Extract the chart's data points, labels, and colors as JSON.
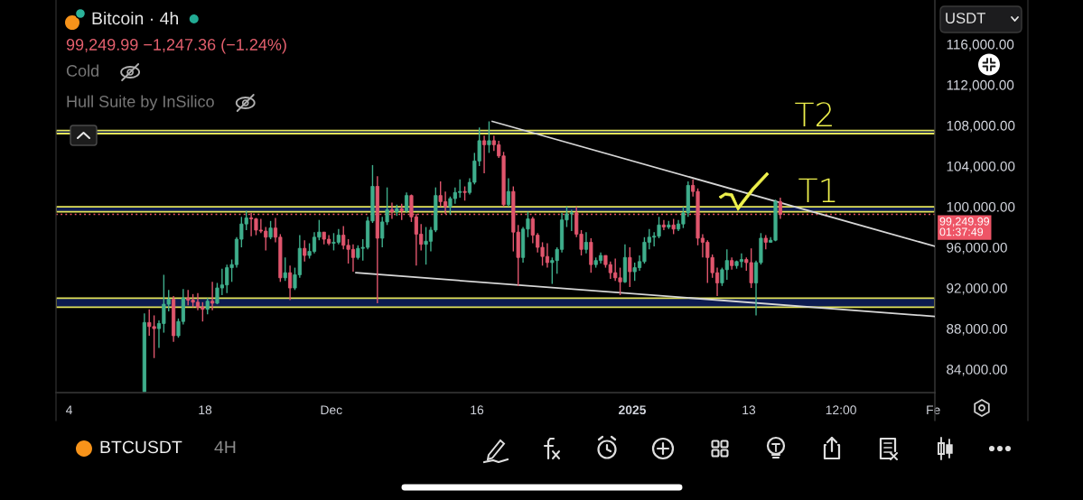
{
  "chart_data": {
    "type": "candlestick",
    "title": "Bitcoin · 4h",
    "subtitle": "99,249.99 −1,247.36 (−1.24%)",
    "ylabel": "USDT",
    "annotations": [
      "Cold",
      "Hull Suite by InSilico",
      "T2",
      "T1",
      "BTCUSDT",
      "4H"
    ],
    "xlim": [
      "2024-11-02T15:30",
      "2025-02-01T04:00"
    ],
    "ylim": [
      81700,
      120350
    ],
    "xticks": [
      {
        "value": "2024-11-04",
        "label": "4"
      },
      {
        "value": "2024-11-18",
        "label": "18"
      },
      {
        "value": "2024-12-01",
        "label": "Dec"
      },
      {
        "value": "2024-12-16",
        "label": "16"
      },
      {
        "value": "2025-01-01",
        "label": "2025"
      },
      {
        "value": "2025-01-13",
        "label": "13"
      },
      {
        "value": "2025-01-22T12:00",
        "label": "12:00"
      },
      {
        "value": "2025-02-01",
        "label": "Fe"
      }
    ],
    "yticks": [
      {
        "value": 84000,
        "label": "84,000.00"
      },
      {
        "value": 88000,
        "label": "88,000.00"
      },
      {
        "value": 92000,
        "label": "92,000.00"
      },
      {
        "value": 96000,
        "label": "96,000.00"
      },
      {
        "value": 100000,
        "label": "100,000.00"
      },
      {
        "value": 104000,
        "label": "104,000.00"
      },
      {
        "value": 108000,
        "label": "108,000.00"
      },
      {
        "value": 112000,
        "label": "112,000.00"
      },
      {
        "value": 116000,
        "label": "116,000.00"
      }
    ],
    "bands": [
      {
        "axis": "y",
        "from": 107200,
        "to": 107500,
        "color": "#0d1b4f"
      },
      {
        "axis": "y",
        "from": 99500,
        "to": 100000,
        "color": "#0d1b4f"
      },
      {
        "axis": "y",
        "from": 90100,
        "to": 91000,
        "color": "#0d1b4f"
      }
    ],
    "ref_lines": [
      {
        "axis": "y",
        "value": 99249.99,
        "label": "99,249.99\n01:37:49",
        "color": "#ee5566",
        "line_style": "dotted"
      }
    ],
    "series": [
      {
        "x": [
          "2024-11-11T18:00",
          "2024-11-12T06:00",
          "2024-11-12T18:00",
          "2024-11-13T06:00",
          "2024-11-13T18:00",
          "2024-11-14T06:00",
          "2024-11-14T18:00",
          "2024-11-15T06:00",
          "2024-11-15T18:00",
          "2024-11-16T06:00",
          "2024-11-16T18:00",
          "2024-11-17T06:00",
          "2024-11-17T18:00",
          "2024-11-18T06:00",
          "2024-11-18T18:00",
          "2024-11-19T06:00",
          "2024-11-19T18:00",
          "2024-11-20T06:00",
          "2024-11-20T18:00",
          "2024-11-21T06:00",
          "2024-11-21T18:00",
          "2024-11-22T06:00",
          "2024-11-22T18:00",
          "2024-11-23T06:00",
          "2024-11-23T18:00",
          "2024-11-24T06:00",
          "2024-11-24T18:00",
          "2024-11-25T06:00",
          "2024-11-25T18:00",
          "2024-11-26T06:00",
          "2024-11-26T18:00",
          "2024-11-27T06:00",
          "2024-11-27T18:00",
          "2024-11-28T06:00",
          "2024-11-28T18:00",
          "2024-11-29T06:00",
          "2024-11-29T18:00",
          "2024-11-30T06:00",
          "2024-11-30T18:00",
          "2024-12-01T06:00",
          "2024-12-01T18:00",
          "2024-12-02T06:00",
          "2024-12-02T18:00",
          "2024-12-03T06:00",
          "2024-12-03T18:00",
          "2024-12-04T06:00",
          "2024-12-04T18:00",
          "2024-12-05T06:00",
          "2024-12-05T18:00",
          "2024-12-06T06:00",
          "2024-12-06T18:00",
          "2024-12-07T06:00",
          "2024-12-07T18:00",
          "2024-12-08T06:00",
          "2024-12-08T18:00",
          "2024-12-09T06:00",
          "2024-12-09T18:00",
          "2024-12-10T06:00",
          "2024-12-10T18:00",
          "2024-12-11T06:00",
          "2024-12-11T18:00",
          "2024-12-12T06:00",
          "2024-12-12T18:00",
          "2024-12-13T06:00",
          "2024-12-13T18:00",
          "2024-12-14T06:00",
          "2024-12-14T18:00",
          "2024-12-15T06:00",
          "2024-12-15T18:00",
          "2024-12-16T06:00",
          "2024-12-16T18:00",
          "2024-12-17T06:00",
          "2024-12-17T18:00",
          "2024-12-18T06:00",
          "2024-12-18T18:00",
          "2024-12-19T06:00",
          "2024-12-19T18:00",
          "2024-12-20T06:00",
          "2024-12-20T18:00",
          "2024-12-21T06:00",
          "2024-12-21T18:00",
          "2024-12-22T06:00",
          "2024-12-22T18:00",
          "2024-12-23T06:00",
          "2024-12-23T18:00",
          "2024-12-24T06:00",
          "2024-12-24T18:00",
          "2024-12-25T06:00",
          "2024-12-25T18:00",
          "2024-12-26T06:00",
          "2024-12-26T18:00",
          "2024-12-27T06:00",
          "2024-12-27T18:00",
          "2024-12-28T06:00",
          "2024-12-28T18:00",
          "2024-12-29T06:00",
          "2024-12-29T18:00",
          "2024-12-30T06:00",
          "2024-12-30T18:00",
          "2024-12-31T06:00",
          "2024-12-31T18:00",
          "2025-01-01T06:00",
          "2025-01-01T18:00",
          "2025-01-02T06:00",
          "2025-01-02T18:00",
          "2025-01-03T06:00",
          "2025-01-03T18:00",
          "2025-01-04T06:00",
          "2025-01-04T18:00",
          "2025-01-05T06:00",
          "2025-01-05T18:00",
          "2025-01-06T06:00",
          "2025-01-06T18:00",
          "2025-01-07T06:00",
          "2025-01-07T18:00",
          "2025-01-08T06:00",
          "2025-01-08T18:00",
          "2025-01-09T06:00",
          "2025-01-09T18:00",
          "2025-01-10T06:00",
          "2025-01-10T18:00",
          "2025-01-11T06:00",
          "2025-01-11T18:00",
          "2025-01-12T06:00",
          "2025-01-12T18:00",
          "2025-01-13T06:00",
          "2025-01-13T18:00",
          "2025-01-14T06:00",
          "2025-01-14T18:00",
          "2025-01-15T06:00",
          "2025-01-15T18:00",
          "2025-01-16T06:00"
        ],
        "ohlc": [
          [
            81800,
            89500,
            81800,
            88600
          ],
          [
            88600,
            89900,
            87300,
            88200
          ],
          [
            88200,
            89300,
            85100,
            88000
          ],
          [
            88000,
            88800,
            86100,
            88500
          ],
          [
            88500,
            93300,
            87600,
            90400
          ],
          [
            90400,
            91800,
            89700,
            90900
          ],
          [
            90900,
            91200,
            86700,
            87300
          ],
          [
            87300,
            89000,
            87100,
            88700
          ],
          [
            88700,
            91900,
            88400,
            91000
          ],
          [
            91000,
            91800,
            90300,
            90800
          ],
          [
            90800,
            91400,
            90100,
            90600
          ],
          [
            90600,
            91500,
            89800,
            90100
          ],
          [
            90100,
            90600,
            88700,
            89900
          ],
          [
            89900,
            91000,
            89400,
            90700
          ],
          [
            90700,
            92600,
            89800,
            90500
          ],
          [
            90500,
            92500,
            90400,
            92000
          ],
          [
            92000,
            93900,
            91300,
            92300
          ],
          [
            92300,
            94300,
            91500,
            94000
          ],
          [
            94000,
            94800,
            92600,
            94300
          ],
          [
            94300,
            97000,
            94000,
            96800
          ],
          [
            96800,
            99000,
            96000,
            98300
          ],
          [
            98300,
            99600,
            97700,
            98900
          ],
          [
            98900,
            99400,
            97100,
            98800
          ],
          [
            98800,
            98900,
            97200,
            97700
          ],
          [
            97700,
            98800,
            97400,
            97600
          ],
          [
            97600,
            98000,
            95700,
            97000
          ],
          [
            97000,
            98600,
            96800,
            97900
          ],
          [
            97900,
            98900,
            96500,
            97000
          ],
          [
            97000,
            97300,
            92600,
            93000
          ],
          [
            93000,
            95000,
            92700,
            93500
          ],
          [
            93500,
            94200,
            90800,
            92000
          ],
          [
            92000,
            94000,
            91800,
            93300
          ],
          [
            93300,
            97200,
            93000,
            95900
          ],
          [
            95900,
            96700,
            94600,
            95200
          ],
          [
            95200,
            96400,
            94900,
            95600
          ],
          [
            95600,
            97500,
            95400,
            97000
          ],
          [
            97000,
            98700,
            96700,
            97500
          ],
          [
            97500,
            97500,
            96300,
            96800
          ],
          [
            96800,
            97200,
            96200,
            96400
          ],
          [
            96400,
            97400,
            95700,
            96500
          ],
          [
            96500,
            97800,
            96300,
            97200
          ],
          [
            97200,
            98100,
            95800,
            96200
          ],
          [
            96200,
            96800,
            94400,
            95800
          ],
          [
            95800,
            96300,
            93600,
            95000
          ],
          [
            95000,
            96200,
            94800,
            95900
          ],
          [
            95900,
            96800,
            94700,
            96000
          ],
          [
            96000,
            99000,
            95800,
            98600
          ],
          [
            98600,
            104100,
            98400,
            102000
          ],
          [
            102000,
            103000,
            90500,
            96900
          ],
          [
            96900,
            99000,
            96000,
            98500
          ],
          [
            98500,
            101900,
            98200,
            99700
          ],
          [
            99700,
            100400,
            98800,
            99500
          ],
          [
            99500,
            100200,
            99100,
            99800
          ],
          [
            99800,
            100300,
            98700,
            99600
          ],
          [
            99600,
            101400,
            99400,
            101100
          ],
          [
            101100,
            101200,
            98500,
            99000
          ],
          [
            99000,
            99300,
            94200,
            97300
          ],
          [
            97300,
            98300,
            95700,
            96300
          ],
          [
            96300,
            98000,
            94300,
            96600
          ],
          [
            96600,
            98000,
            95600,
            97700
          ],
          [
            97700,
            101900,
            97500,
            101100
          ],
          [
            101100,
            102500,
            100000,
            100500
          ],
          [
            100500,
            101500,
            99300,
            100000
          ],
          [
            100000,
            101000,
            99200,
            100800
          ],
          [
            100800,
            101900,
            100300,
            101400
          ],
          [
            101400,
            102700,
            100900,
            101500
          ],
          [
            101500,
            102000,
            100600,
            101400
          ],
          [
            101400,
            102800,
            101200,
            102400
          ],
          [
            102400,
            105300,
            102200,
            104500
          ],
          [
            104500,
            107800,
            104000,
            106500
          ],
          [
            106500,
            107000,
            103300,
            106100
          ],
          [
            106100,
            108400,
            105300,
            106500
          ],
          [
            106500,
            107000,
            105500,
            106100
          ],
          [
            106100,
            106500,
            104800,
            105000
          ],
          [
            105000,
            105400,
            100000,
            100200
          ],
          [
            100200,
            102800,
            100000,
            101500
          ],
          [
            101500,
            102000,
            95600,
            97500
          ],
          [
            97500,
            98200,
            92200,
            95000
          ],
          [
            95000,
            98000,
            94500,
            97800
          ],
          [
            97800,
            99500,
            97000,
            98800
          ],
          [
            98800,
            99000,
            96400,
            97200
          ],
          [
            97200,
            97400,
            95500,
            96000
          ],
          [
            96000,
            96500,
            94200,
            95100
          ],
          [
            95100,
            96400,
            94000,
            94500
          ],
          [
            94500,
            95000,
            92400,
            94700
          ],
          [
            94700,
            96000,
            93400,
            95800
          ],
          [
            95800,
            99400,
            95500,
            98700
          ],
          [
            98700,
            100000,
            98000,
            99300
          ],
          [
            99300,
            99700,
            97600,
            99400
          ],
          [
            99400,
            100000,
            97000,
            97300
          ],
          [
            97300,
            97700,
            95200,
            95800
          ],
          [
            95800,
            97500,
            95400,
            96500
          ],
          [
            96500,
            96900,
            93500,
            94300
          ],
          [
            94300,
            95000,
            94000,
            94700
          ],
          [
            94700,
            95500,
            94400,
            95200
          ],
          [
            95200,
            95200,
            94000,
            94300
          ],
          [
            94300,
            94600,
            92900,
            93500
          ],
          [
            93500,
            94900,
            92700,
            93000
          ],
          [
            93000,
            94000,
            91300,
            92600
          ],
          [
            92600,
            96300,
            92500,
            95000
          ],
          [
            95000,
            96000,
            92100,
            93600
          ],
          [
            93600,
            94500,
            92700,
            94000
          ],
          [
            94000,
            95200,
            93700,
            94600
          ],
          [
            94600,
            97000,
            94400,
            96500
          ],
          [
            96500,
            97800,
            95800,
            97000
          ],
          [
            97000,
            97500,
            96100,
            97100
          ],
          [
            97100,
            99000,
            96900,
            98200
          ],
          [
            98200,
            98700,
            97700,
            98000
          ],
          [
            98000,
            98600,
            97800,
            98200
          ],
          [
            98200,
            98800,
            97300,
            97800
          ],
          [
            97800,
            98700,
            97600,
            98300
          ],
          [
            98300,
            100000,
            97900,
            99400
          ],
          [
            99400,
            102500,
            99000,
            102100
          ],
          [
            102100,
            102700,
            101000,
            101500
          ],
          [
            101500,
            101800,
            96200,
            96900
          ],
          [
            96900,
            97300,
            95000,
            96500
          ],
          [
            96500,
            96700,
            92500,
            95000
          ],
          [
            95000,
            95300,
            93000,
            93500
          ],
          [
            93500,
            94000,
            91200,
            92500
          ],
          [
            92500,
            94000,
            92200,
            93800
          ],
          [
            93800,
            95800,
            92800,
            94700
          ],
          [
            94700,
            95000,
            93800,
            94200
          ],
          [
            94200,
            94700,
            93900,
            94600
          ],
          [
            94600,
            95400,
            94000,
            94800
          ],
          [
            94800,
            95000,
            93700,
            94500
          ],
          [
            94500,
            95900,
            92000,
            92500
          ],
          [
            92500,
            94700,
            89300,
            94500
          ],
          [
            94500,
            97400,
            94300,
            96900
          ],
          [
            96900,
            97200,
            95800,
            96500
          ],
          [
            96500,
            97000,
            96500,
            96700
          ],
          [
            96700,
            100700,
            96600,
            100500
          ],
          [
            100500,
            100900,
            98800,
            99250
          ]
        ],
        "colors": [
          "#3fae8c",
          "#e0566d",
          "#e0566d",
          "#3fae8c",
          "#3fae8c",
          "#3fae8c",
          "#e0566d",
          "#3fae8c",
          "#3fae8c",
          "#e0566d",
          "#e0566d",
          "#e0566d",
          "#e0566d",
          "#3fae8c",
          "#e0566d",
          "#3fae8c",
          "#3fae8c",
          "#3fae8c",
          "#3fae8c",
          "#3fae8c",
          "#3fae8c",
          "#3fae8c",
          "#e0566d",
          "#e0566d",
          "#e0566d",
          "#e0566d",
          "#3fae8c",
          "#e0566d",
          "#e0566d",
          "#3fae8c",
          "#e0566d",
          "#3fae8c",
          "#3fae8c",
          "#e0566d",
          "#3fae8c",
          "#3fae8c",
          "#3fae8c",
          "#e0566d",
          "#e0566d",
          "#3fae8c",
          "#3fae8c",
          "#e0566d",
          "#e0566d",
          "#e0566d",
          "#3fae8c",
          "#3fae8c",
          "#3fae8c",
          "#3fae8c",
          "#e0566d",
          "#3fae8c",
          "#3fae8c",
          "#e0566d",
          "#3fae8c",
          "#e0566d",
          "#3fae8c",
          "#e0566d",
          "#e0566d",
          "#e0566d",
          "#3fae8c",
          "#3fae8c",
          "#3fae8c",
          "#e0566d",
          "#e0566d",
          "#3fae8c",
          "#3fae8c",
          "#3fae8c",
          "#e0566d",
          "#3fae8c",
          "#3fae8c",
          "#3fae8c",
          "#e0566d",
          "#3fae8c",
          "#e0566d",
          "#e0566d",
          "#e0566d",
          "#3fae8c",
          "#e0566d",
          "#e0566d",
          "#3fae8c",
          "#3fae8c",
          "#e0566d",
          "#e0566d",
          "#e0566d",
          "#e0566d",
          "#3fae8c",
          "#3fae8c",
          "#3fae8c",
          "#3fae8c",
          "#3fae8c",
          "#e0566d",
          "#e0566d",
          "#3fae8c",
          "#e0566d",
          "#3fae8c",
          "#3fae8c",
          "#e0566d",
          "#e0566d",
          "#e0566d",
          "#e0566d",
          "#3fae8c",
          "#e0566d",
          "#3fae8c",
          "#3fae8c",
          "#3fae8c",
          "#3fae8c",
          "#3fae8c",
          "#3fae8c",
          "#e0566d",
          "#3fae8c",
          "#e0566d",
          "#3fae8c",
          "#3fae8c",
          "#3fae8c",
          "#e0566d",
          "#e0566d",
          "#e0566d",
          "#e0566d",
          "#e0566d",
          "#e0566d",
          "#3fae8c",
          "#3fae8c",
          "#e0566d",
          "#3fae8c",
          "#3fae8c",
          "#e0566d",
          "#e0566d",
          "#3fae8c",
          "#3fae8c",
          "#e0566d",
          "#3fae8c",
          "#3fae8c",
          "#e0566d"
        ]
      },
      {
        "type": "line",
        "x": [
          "2024-12-17T14:00",
          "2025-02-01T04:00"
        ],
        "values": [
          108400,
          96100
        ],
        "color": "#d6d6d6"
      },
      {
        "type": "line",
        "x": [
          "2024-12-03T13:00",
          "2025-02-01T04:00"
        ],
        "values": [
          93500,
          89200
        ],
        "color": "#d6d6d6"
      }
    ]
  }
}
